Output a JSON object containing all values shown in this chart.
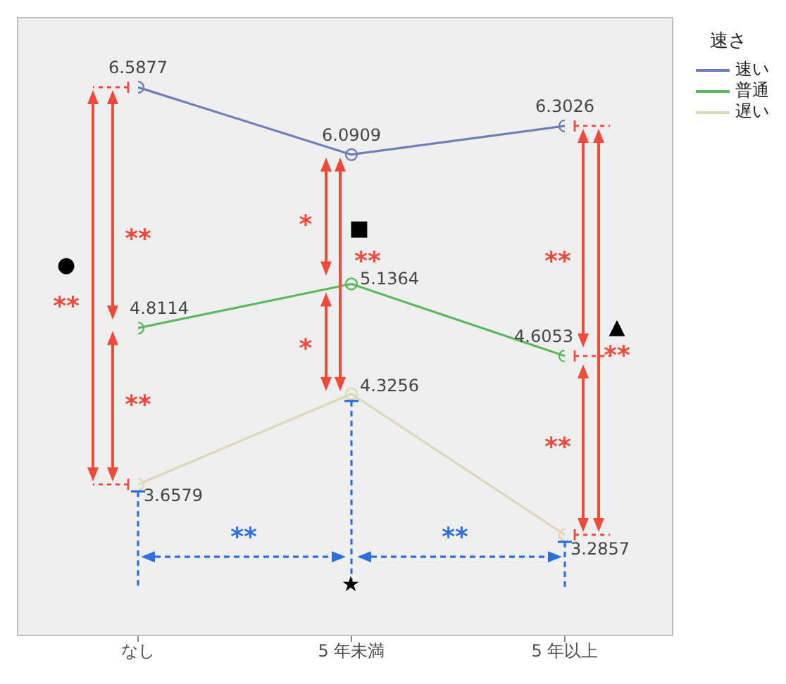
{
  "chart_data": {
    "type": "line",
    "categories": [
      "なし",
      "5 年未満",
      "5 年以上"
    ],
    "series": [
      {
        "name": "速い",
        "color": "#6f7fb8",
        "values": [
          6.5877,
          6.0909,
          6.3026
        ]
      },
      {
        "name": "普通",
        "color": "#5cb85c",
        "values": [
          4.8114,
          5.1364,
          4.6053
        ]
      },
      {
        "name": "遅い",
        "color": "#d9d9b8",
        "values": [
          3.6579,
          4.3256,
          3.2857
        ]
      }
    ],
    "legend_title": "速さ",
    "legend": "right",
    "marker": "circle",
    "data_labels": true,
    "tick_labels": "x",
    "annotations": [
      "●",
      "**",
      "**",
      "**",
      "*",
      "*",
      "■",
      "**",
      "**",
      "**",
      "▲",
      "**",
      "**",
      "**",
      "★"
    ]
  }
}
